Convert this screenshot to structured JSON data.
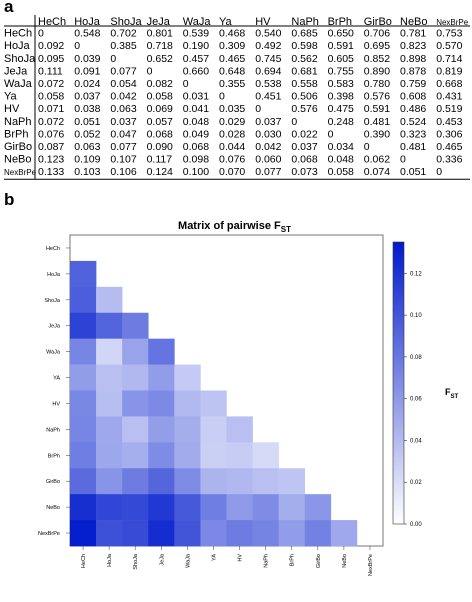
{
  "panel_a_label": "a",
  "panel_b_label": "b",
  "table": {
    "columns": [
      "HeCh",
      "HoJa",
      "ShoJa",
      "JeJa",
      "WaJa",
      "Ya",
      "HV",
      "NaPh",
      "BrPh",
      "GirBo",
      "NeBo",
      "NexBrPe"
    ],
    "rows": [
      {
        "label": "HeCh",
        "cells": [
          "0",
          "0.548",
          "0.702",
          "0.801",
          "0.539",
          "0.468",
          "0.540",
          "0.685",
          "0.650",
          "0.706",
          "0.781",
          "0.753"
        ]
      },
      {
        "label": "HoJa",
        "cells": [
          "0.092",
          "0",
          "0.385",
          "0.718",
          "0.190",
          "0.309",
          "0.492",
          "0.598",
          "0.591",
          "0.695",
          "0.823",
          "0.570"
        ]
      },
      {
        "label": "ShoJa",
        "cells": [
          "0.095",
          "0.039",
          "0",
          "0.652",
          "0.457",
          "0.465",
          "0.745",
          "0.562",
          "0.605",
          "0.852",
          "0.898",
          "0.714"
        ]
      },
      {
        "label": "JeJa",
        "cells": [
          "0.111",
          "0.091",
          "0.077",
          "0",
          "0.660",
          "0.648",
          "0.694",
          "0.681",
          "0.755",
          "0.890",
          "0.878",
          "0.819"
        ]
      },
      {
        "label": "WaJa",
        "cells": [
          "0.072",
          "0.024",
          "0.054",
          "0.082",
          "0",
          "0.355",
          "0.538",
          "0.558",
          "0.583",
          "0.780",
          "0.759",
          "0.668"
        ]
      },
      {
        "label": "Ya",
        "cells": [
          "0.058",
          "0.037",
          "0.042",
          "0.058",
          "0.031",
          "0",
          "0.451",
          "0.506",
          "0.398",
          "0.576",
          "0.608",
          "0.431"
        ]
      },
      {
        "label": "HV",
        "cells": [
          "0.071",
          "0.038",
          "0.063",
          "0.069",
          "0.041",
          "0.035",
          "0",
          "0.576",
          "0.475",
          "0.591",
          "0.486",
          "0.519"
        ]
      },
      {
        "label": "NaPh",
        "cells": [
          "0.072",
          "0.051",
          "0.037",
          "0.057",
          "0.048",
          "0.029",
          "0.037",
          "0",
          "0.248",
          "0.481",
          "0.524",
          "0.453"
        ]
      },
      {
        "label": "BrPh",
        "cells": [
          "0.076",
          "0.052",
          "0.047",
          "0.068",
          "0.049",
          "0.028",
          "0.030",
          "0.022",
          "0",
          "0.390",
          "0.323",
          "0.306"
        ]
      },
      {
        "label": "GirBo",
        "cells": [
          "0.087",
          "0.063",
          "0.077",
          "0.090",
          "0.068",
          "0.044",
          "0.042",
          "0.037",
          "0.034",
          "0",
          "0.481",
          "0.465"
        ]
      },
      {
        "label": "NeBo",
        "cells": [
          "0.123",
          "0.109",
          "0.107",
          "0.117",
          "0.098",
          "0.076",
          "0.060",
          "0.068",
          "0.048",
          "0.062",
          "0",
          "0.336"
        ]
      },
      {
        "label": "NexBrPe",
        "cells": [
          "0.133",
          "0.103",
          "0.106",
          "0.124",
          "0.100",
          "0.070",
          "0.077",
          "0.073",
          "0.058",
          "0.074",
          "0.051",
          "0"
        ]
      }
    ]
  },
  "chart_data": {
    "type": "heatmap",
    "title": "Matrix of pairwise F",
    "title_subscript": "ST",
    "x_labels": [
      "HeCh",
      "HoJa",
      "ShoJa",
      "JeJa",
      "WaJa",
      "YA",
      "HV",
      "NaPh",
      "BrPh",
      "GirBo",
      "NeBo",
      "NexBrPe"
    ],
    "y_labels": [
      "HeCh",
      "HoJa",
      "ShoJa",
      "JeJa",
      "WaJa",
      "YA",
      "HV",
      "NaPh",
      "BrPh",
      "GirBo",
      "NeBo",
      "NexBrPe"
    ],
    "values": [
      [],
      [
        0.092
      ],
      [
        0.095,
        0.039
      ],
      [
        0.111,
        0.091,
        0.077
      ],
      [
        0.072,
        0.024,
        0.054,
        0.082
      ],
      [
        0.058,
        0.037,
        0.042,
        0.058,
        0.031
      ],
      [
        0.071,
        0.038,
        0.063,
        0.069,
        0.041,
        0.035
      ],
      [
        0.072,
        0.051,
        0.037,
        0.057,
        0.048,
        0.029,
        0.037
      ],
      [
        0.076,
        0.052,
        0.047,
        0.068,
        0.049,
        0.028,
        0.03,
        0.022
      ],
      [
        0.087,
        0.063,
        0.077,
        0.09,
        0.068,
        0.044,
        0.042,
        0.037,
        0.034
      ],
      [
        0.123,
        0.109,
        0.107,
        0.117,
        0.098,
        0.076,
        0.06,
        0.068,
        0.048,
        0.062
      ],
      [
        0.133,
        0.103,
        0.106,
        0.124,
        0.1,
        0.07,
        0.077,
        0.073,
        0.058,
        0.074,
        0.051
      ]
    ],
    "colorbar": {
      "label": "F",
      "label_subscript": "ST",
      "ticks": [
        "0.00",
        "0.02",
        "0.04",
        "0.06",
        "0.08",
        "0.10",
        "0.12"
      ],
      "min": 0,
      "max": 0.135,
      "color_low": "#ffffff",
      "color_high": "#0000cc"
    }
  }
}
